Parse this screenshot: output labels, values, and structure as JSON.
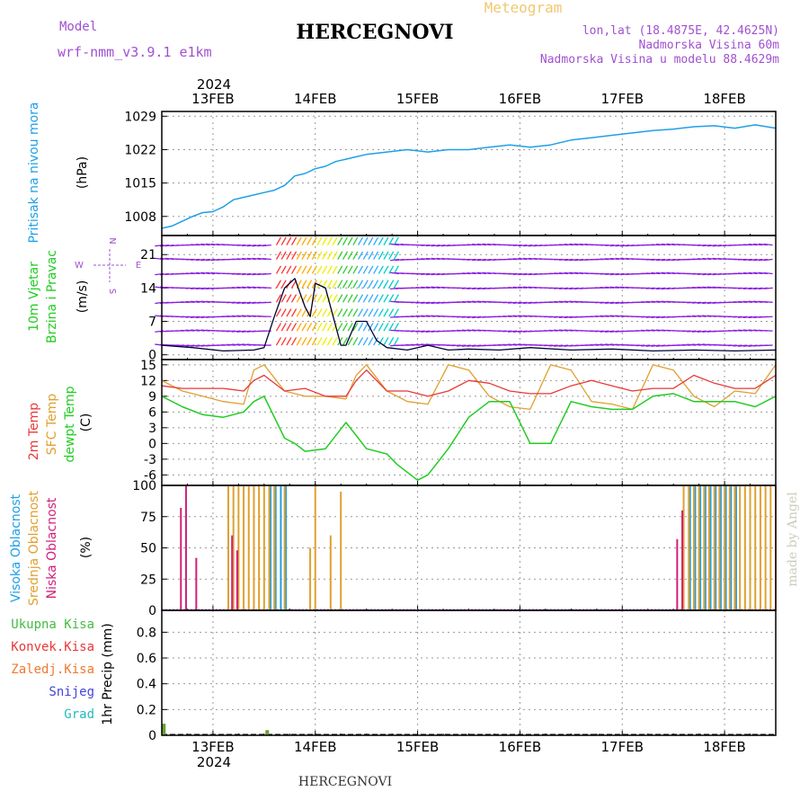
{
  "header": {
    "model_label": "Model",
    "model_name": "wrf-nmm_v3.9.1 e1km",
    "station": "HERCEGNOVI",
    "product": "Meteogram",
    "lonlat": "lon,lat (18.4875E, 42.4625N)",
    "elevation": "Nadmorska Visina 60m",
    "model_elevation": "Nadmorska Visina u modelu 88.4629m",
    "footer_station": "HERCEGNOVI",
    "credit": "made by Angel"
  },
  "colors": {
    "pressure": "#1ea0e6",
    "temp2m": "#e83838",
    "sfc_temp": "#e0a030",
    "dewpoint": "#22cc22",
    "cloud_high": "#1ea0e6",
    "cloud_mid": "#e0a030",
    "cloud_low": "#d0207a",
    "precip_total": "#44bb44",
    "precip_conv": "#e83838",
    "precip_frozen": "#f07830",
    "snow": "#4444dd",
    "hail": "#22bbbb",
    "header_purple": "#a050d0",
    "meteogram_orange": "#f0c870",
    "wind_purple": "#8a1ee0"
  },
  "time_axis": {
    "year": "2024",
    "labels": [
      "13FEB",
      "14FEB",
      "15FEB",
      "16FEB",
      "17FEB",
      "18FEB"
    ],
    "label_day_offsets": [
      0.5,
      1.5,
      2.5,
      3.5,
      4.5,
      5.5
    ],
    "range_days": [
      0,
      6
    ]
  },
  "chart_data": [
    {
      "id": "pressure",
      "type": "line",
      "ylabel_lines": [
        "Pritisak na nivou mora"
      ],
      "unit": "(hPa)",
      "yticks": [
        1008,
        1015,
        1022,
        1029
      ],
      "ylim": [
        1004,
        1030
      ],
      "series": [
        {
          "x": [
            0.0,
            0.1,
            0.2,
            0.3,
            0.4,
            0.5,
            0.6,
            0.7,
            0.8,
            0.9,
            1.0,
            1.1,
            1.2,
            1.3,
            1.4,
            1.5,
            1.6,
            1.7,
            1.8,
            1.9,
            2.0,
            2.2,
            2.4,
            2.6,
            2.8,
            3.0,
            3.2,
            3.4,
            3.6,
            3.8,
            4.0,
            4.2,
            4.4,
            4.6,
            4.8,
            5.0,
            5.2,
            5.4,
            5.6,
            5.8,
            6.0
          ],
          "values": [
            1005.5,
            1006.0,
            1007.0,
            1008.0,
            1008.8,
            1009.0,
            1010.0,
            1011.5,
            1012.0,
            1012.5,
            1013.0,
            1013.5,
            1014.5,
            1016.5,
            1017.0,
            1018.0,
            1018.5,
            1019.5,
            1020.0,
            1020.5,
            1021.0,
            1021.5,
            1022.0,
            1021.5,
            1022.0,
            1022.0,
            1022.5,
            1023.0,
            1022.5,
            1023.0,
            1024.0,
            1024.5,
            1025.0,
            1025.5,
            1026.0,
            1026.3,
            1026.8,
            1027.0,
            1026.5,
            1027.2,
            1026.5
          ]
        }
      ]
    },
    {
      "id": "wind",
      "type": "line",
      "ylabel_lines": [
        "10m Vjetar",
        "Brzina i Pravac"
      ],
      "unit": "(m/s)",
      "compass": {
        "west": "W",
        "east": "E",
        "north": "N",
        "south": "S"
      },
      "yticks": [
        0,
        7,
        14,
        21
      ],
      "ylim": [
        -1,
        25
      ],
      "series": [
        {
          "name": "speed",
          "x": [
            0.0,
            0.3,
            0.6,
            0.9,
            1.0,
            1.1,
            1.2,
            1.3,
            1.4,
            1.45,
            1.5,
            1.6,
            1.7,
            1.75,
            1.8,
            1.9,
            2.0,
            2.1,
            2.2,
            2.4,
            2.6,
            2.8,
            3.0,
            3.3,
            3.6,
            4.0,
            4.4,
            4.8,
            5.2,
            5.6,
            6.0
          ],
          "values": [
            2,
            1.5,
            0.8,
            1.0,
            1.5,
            8,
            14,
            16,
            10,
            8,
            15,
            14,
            6,
            2,
            2,
            7,
            7,
            3,
            1.5,
            1.0,
            2.0,
            1.0,
            1.2,
            1.0,
            1.5,
            1.0,
            1.2,
            0.8,
            1.0,
            0.8,
            1.0
          ]
        }
      ]
    },
    {
      "id": "temperature",
      "type": "line",
      "ylabel_lines": [
        "2m Temp",
        "SFC Temp",
        "dewpt Temp"
      ],
      "unit": "(C)",
      "yticks": [
        -6,
        -3,
        0,
        3,
        6,
        9,
        12,
        15
      ],
      "ylim": [
        -8,
        16
      ],
      "series": [
        {
          "name": "2m Temp",
          "x": [
            0.0,
            0.2,
            0.4,
            0.6,
            0.8,
            0.9,
            1.0,
            1.2,
            1.4,
            1.6,
            1.8,
            1.9,
            2.0,
            2.2,
            2.4,
            2.6,
            2.8,
            3.0,
            3.2,
            3.4,
            3.6,
            3.8,
            4.0,
            4.2,
            4.4,
            4.6,
            4.8,
            5.0,
            5.2,
            5.4,
            5.6,
            5.8,
            6.0
          ],
          "values": [
            11,
            10.5,
            10.5,
            10.5,
            10,
            12,
            13,
            10,
            10.5,
            9,
            9,
            12,
            14,
            10,
            10,
            9,
            10,
            12,
            11.5,
            10,
            9.5,
            9.5,
            11,
            12,
            11,
            10,
            10.5,
            10.5,
            13,
            11.5,
            10.5,
            10.5,
            13
          ]
        },
        {
          "name": "SFC Temp",
          "x": [
            0.0,
            0.2,
            0.4,
            0.6,
            0.8,
            0.9,
            1.0,
            1.2,
            1.4,
            1.6,
            1.8,
            1.9,
            2.0,
            2.2,
            2.4,
            2.6,
            2.8,
            3.0,
            3.2,
            3.4,
            3.6,
            3.8,
            4.0,
            4.2,
            4.4,
            4.6,
            4.8,
            5.0,
            5.2,
            5.4,
            5.6,
            5.8,
            6.0
          ],
          "values": [
            12,
            10,
            9,
            8,
            7.5,
            14,
            15,
            10,
            9,
            9,
            8.5,
            13,
            15,
            10,
            8,
            7.5,
            15,
            14,
            9,
            7,
            6.5,
            15,
            14,
            8,
            7.5,
            6.5,
            15,
            14,
            9,
            7,
            10,
            9.5,
            15
          ]
        },
        {
          "name": "dewpt Temp",
          "x": [
            0.0,
            0.2,
            0.4,
            0.6,
            0.8,
            0.9,
            1.0,
            1.2,
            1.3,
            1.4,
            1.6,
            1.8,
            2.0,
            2.2,
            2.3,
            2.5,
            2.6,
            2.8,
            3.0,
            3.2,
            3.4,
            3.6,
            3.8,
            4.0,
            4.2,
            4.4,
            4.6,
            4.8,
            5.0,
            5.2,
            5.4,
            5.6,
            5.8,
            6.0
          ],
          "values": [
            9,
            7,
            5.5,
            5,
            6,
            8,
            9,
            1,
            0,
            -1.5,
            -1,
            4,
            -1,
            -2,
            -4,
            -7,
            -6,
            -1,
            5,
            8,
            8,
            0,
            0,
            8,
            7,
            6.5,
            6.5,
            9,
            9.5,
            8,
            8,
            8,
            7,
            9
          ]
        }
      ]
    },
    {
      "id": "clouds",
      "type": "bar",
      "ylabel_lines": [
        "Visoka Oblacnost",
        "Srednja Oblacnost",
        "Niska Oblacnost"
      ],
      "unit": "(%)",
      "yticks": [
        0,
        25,
        50,
        75,
        100
      ],
      "ylim": [
        0,
        100
      ],
      "series": [
        {
          "name": "Visoka Oblacnost",
          "x": [
            1.05,
            1.1,
            1.15,
            1.2,
            5.15,
            5.2,
            5.25,
            5.3,
            5.35,
            5.4,
            5.45,
            5.5,
            5.55,
            5.6
          ],
          "values": [
            100,
            100,
            100,
            100,
            100,
            100,
            100,
            100,
            100,
            100,
            100,
            100,
            100,
            100
          ]
        },
        {
          "name": "Srednja Oblacnost",
          "x": [
            0.65,
            0.7,
            0.75,
            0.8,
            0.85,
            0.9,
            0.95,
            1.0,
            1.05,
            1.1,
            1.2,
            1.45,
            1.5,
            1.65,
            1.75,
            5.1,
            5.15,
            5.2,
            5.25,
            5.3,
            5.35,
            5.4,
            5.45,
            5.5,
            5.55,
            5.6,
            5.65,
            5.7,
            5.75,
            5.8,
            5.85,
            5.9,
            5.95,
            6.0
          ],
          "values": [
            100,
            100,
            100,
            100,
            100,
            100,
            100,
            100,
            100,
            100,
            100,
            50,
            100,
            60,
            95,
            100,
            100,
            100,
            100,
            100,
            100,
            100,
            100,
            100,
            100,
            100,
            100,
            100,
            100,
            100,
            100,
            100,
            100,
            100
          ]
        },
        {
          "name": "Niska Oblacnost",
          "x": [
            0.2,
            0.25,
            0.35,
            0.7,
            0.75,
            5.05,
            5.1
          ],
          "values": [
            82,
            100,
            42,
            60,
            48,
            57,
            80
          ]
        }
      ]
    },
    {
      "id": "precip",
      "type": "bar",
      "ylabel_lines": [
        "1hr Precip (mm)"
      ],
      "legend": [
        "Ukupna Kisa",
        "Konvek.Kisa",
        "Zaledj.Kisa",
        "Snijeg",
        "Grad"
      ],
      "yticks": [
        0,
        0.2,
        0.4,
        0.6,
        0.8
      ],
      "ytick_labels": [
        "0",
        "0.2",
        "0.4",
        "0.6",
        "0.8"
      ],
      "ylim": [
        0,
        0.97
      ],
      "series": [
        {
          "name": "Ukupna Kisa",
          "x": [
            0.02,
            1.03
          ],
          "values": [
            0.09,
            0.04
          ]
        }
      ]
    }
  ]
}
